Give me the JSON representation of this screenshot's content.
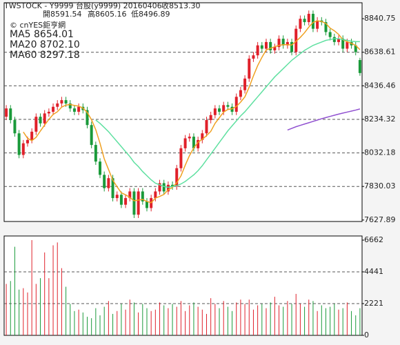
{
  "chart_data": [
    {
      "type": "candlestick",
      "title": "TWSTOCK - Y9999  台股(y9999) 20160406",
      "header_values": [
        "收8513.30",
        "開8591.54",
        "高8605.16",
        "低8496.89"
      ],
      "watermark": "© cnYES鉅亨網",
      "up_color": "#e0202a",
      "down_color": "#1a9a3a",
      "open": [
        8250,
        8300,
        8230,
        8150,
        8020,
        8090,
        8110,
        8160,
        8250,
        8210,
        8270,
        8280,
        8310,
        8330,
        8350,
        8330,
        8300,
        8280,
        8310,
        8290,
        8200,
        8080,
        7980,
        7900,
        7820,
        7880,
        7760,
        7780,
        7720,
        7760,
        7800,
        7660,
        7800,
        7740,
        7700,
        7760,
        7800,
        7850,
        7800,
        7840,
        7830,
        7940,
        8060,
        8120,
        8130,
        8060,
        8110,
        8150,
        8230,
        8260,
        8300,
        8280,
        8320,
        8310,
        8280,
        8370,
        8410,
        8480,
        8600,
        8620,
        8680,
        8660,
        8700,
        8650,
        8670,
        8720,
        8680,
        8700,
        8640,
        8780,
        8840,
        8820,
        8870,
        8780,
        8830,
        8820,
        8760,
        8730,
        8700,
        8720,
        8660,
        8700,
        8680,
        8591.54
      ],
      "high": [
        8320,
        8320,
        8250,
        8170,
        8110,
        8130,
        8180,
        8270,
        8270,
        8290,
        8300,
        8330,
        8350,
        8370,
        8370,
        8350,
        8320,
        8330,
        8330,
        8310,
        8220,
        8100,
        8000,
        7920,
        7900,
        7900,
        7800,
        7800,
        7780,
        7820,
        7820,
        7820,
        7820,
        7760,
        7780,
        7820,
        7870,
        7870,
        7860,
        7860,
        7960,
        8080,
        8140,
        8150,
        8150,
        8130,
        8170,
        8250,
        8280,
        8320,
        8320,
        8340,
        8340,
        8330,
        8390,
        8430,
        8500,
        8620,
        8640,
        8700,
        8700,
        8720,
        8720,
        8690,
        8740,
        8740,
        8720,
        8720,
        8800,
        8860,
        8860,
        8890,
        8890,
        8850,
        8850,
        8840,
        8780,
        8750,
        8740,
        8740,
        8720,
        8720,
        8700,
        8605.16
      ],
      "low": [
        8230,
        8210,
        8130,
        8000,
        8000,
        8070,
        8090,
        8140,
        8190,
        8190,
        8250,
        8260,
        8290,
        8310,
        8310,
        8280,
        8260,
        8260,
        8270,
        8180,
        8060,
        7960,
        7880,
        7800,
        7800,
        7740,
        7740,
        7700,
        7700,
        7740,
        7640,
        7640,
        7720,
        7680,
        7680,
        7740,
        7780,
        7780,
        7780,
        7810,
        7810,
        7920,
        8040,
        8100,
        8040,
        8040,
        8090,
        8130,
        8210,
        8240,
        8260,
        8260,
        8290,
        8260,
        8260,
        8350,
        8390,
        8460,
        8580,
        8600,
        8640,
        8640,
        8630,
        8630,
        8650,
        8660,
        8660,
        8620,
        8620,
        8760,
        8800,
        8800,
        8760,
        8760,
        8800,
        8740,
        8710,
        8680,
        8680,
        8640,
        8640,
        8660,
        8620,
        8496.89
      ],
      "close": [
        8300,
        8230,
        8150,
        8020,
        8090,
        8110,
        8160,
        8250,
        8210,
        8270,
        8280,
        8310,
        8330,
        8350,
        8330,
        8300,
        8280,
        8310,
        8290,
        8200,
        8080,
        7980,
        7900,
        7820,
        7880,
        7760,
        7780,
        7720,
        7760,
        7800,
        7660,
        7800,
        7740,
        7700,
        7760,
        7800,
        7850,
        7800,
        7840,
        7830,
        7940,
        8060,
        8120,
        8130,
        8060,
        8110,
        8150,
        8230,
        8260,
        8300,
        8280,
        8320,
        8310,
        8280,
        8370,
        8410,
        8480,
        8600,
        8620,
        8680,
        8660,
        8700,
        8650,
        8670,
        8720,
        8680,
        8700,
        8640,
        8780,
        8840,
        8820,
        8870,
        8780,
        8830,
        8820,
        8760,
        8730,
        8700,
        8720,
        8660,
        8700,
        8680,
        8640,
        8513.3
      ],
      "series": [
        {
          "name": "MA5 8654.01",
          "color": "#f0a020",
          "values": [
            null,
            null,
            null,
            null,
            8158,
            8120,
            8106,
            8126,
            8164,
            8200,
            8234,
            8264,
            8280,
            8308,
            8320,
            8324,
            8318,
            8314,
            8302,
            8276,
            8232,
            8172,
            8090,
            7996,
            7932,
            7868,
            7828,
            7792,
            7780,
            7764,
            7744,
            7748,
            7752,
            7740,
            7732,
            7760,
            7770,
            7782,
            7810,
            7824,
            7852,
            7894,
            7958,
            8016,
            8062,
            8096,
            8114,
            8136,
            8162,
            8210,
            8244,
            8278,
            8294,
            8298,
            8312,
            8338,
            8370,
            8428,
            8496,
            8558,
            8608,
            8652,
            8662,
            8672,
            8680,
            8684,
            8684,
            8682,
            8704,
            8728,
            8756,
            8790,
            8818,
            8828,
            8824,
            8812,
            8784,
            8768,
            8746,
            8714,
            8702,
            8692,
            8680,
            8654.01
          ]
        },
        {
          "name": "MA20 8702.10",
          "color": "#5ee0a0",
          "values": [
            null,
            null,
            null,
            null,
            null,
            null,
            null,
            null,
            null,
            null,
            null,
            null,
            null,
            null,
            null,
            null,
            null,
            null,
            null,
            null,
            null,
            8230,
            8210,
            8185,
            8160,
            8130,
            8100,
            8070,
            8040,
            8010,
            7975,
            7950,
            7920,
            7895,
            7870,
            7850,
            7840,
            7830,
            7825,
            7830,
            7835,
            7845,
            7860,
            7880,
            7900,
            7925,
            7955,
            7990,
            8025,
            8060,
            8095,
            8130,
            8165,
            8195,
            8225,
            8255,
            8280,
            8310,
            8340,
            8370,
            8400,
            8430,
            8460,
            8490,
            8515,
            8540,
            8565,
            8590,
            8610,
            8630,
            8650,
            8665,
            8680,
            8690,
            8700,
            8710,
            8715,
            8720,
            8720,
            8715,
            8710,
            8705,
            8703,
            8702.1
          ]
        },
        {
          "name": "MA60 8297.18",
          "color": "#9050d0",
          "values": [
            null,
            null,
            null,
            null,
            null,
            null,
            null,
            null,
            null,
            null,
            null,
            null,
            null,
            null,
            null,
            null,
            null,
            null,
            null,
            null,
            null,
            null,
            null,
            null,
            null,
            null,
            null,
            null,
            null,
            null,
            null,
            null,
            null,
            null,
            null,
            null,
            null,
            null,
            null,
            null,
            null,
            null,
            null,
            null,
            null,
            null,
            null,
            null,
            null,
            null,
            null,
            null,
            null,
            null,
            null,
            null,
            null,
            null,
            null,
            null,
            null,
            null,
            null,
            null,
            null,
            null,
            8170,
            8180,
            8190,
            8198,
            8206,
            8214,
            8222,
            8230,
            8238,
            8245,
            8252,
            8259,
            8266,
            8272,
            8278,
            8284,
            8290,
            8297.18
          ]
        }
      ],
      "ylim": [
        7619,
        8936.6
      ],
      "yticks": [
        8840.75,
        8638.61,
        8436.46,
        8234.32,
        8032.18,
        7830.03,
        7627.89
      ],
      "grid": true
    },
    {
      "type": "volume",
      "values": [
        3600,
        3800,
        6200,
        3200,
        3300,
        3000,
        6662,
        3600,
        4000,
        5800,
        4000,
        6300,
        6500,
        4700,
        3400,
        2200,
        1700,
        1800,
        1600,
        1300,
        1200,
        1900,
        1400,
        2000,
        2400,
        1500,
        1700,
        2200,
        1800,
        2500,
        2300,
        1600,
        2200,
        1900,
        1700,
        1800,
        2300,
        2100,
        1900,
        2200,
        2000,
        2400,
        1700,
        2100,
        2300,
        2000,
        1800,
        1500,
        2600,
        2200,
        1900,
        2400,
        2000,
        1700,
        2300,
        2500,
        2200,
        2500,
        1800,
        2100,
        2200,
        1900,
        2300,
        2700,
        2100,
        2000,
        2400,
        2200,
        2900,
        2200,
        2000,
        2500,
        2400,
        1700,
        2100,
        1900,
        2000,
        2200,
        1800,
        1900,
        2300,
        1700,
        1400,
        1900
      ],
      "ylim": [
        0,
        6952
      ],
      "yticks": [
        6662,
        4441,
        2221,
        0
      ],
      "grid": true
    }
  ]
}
